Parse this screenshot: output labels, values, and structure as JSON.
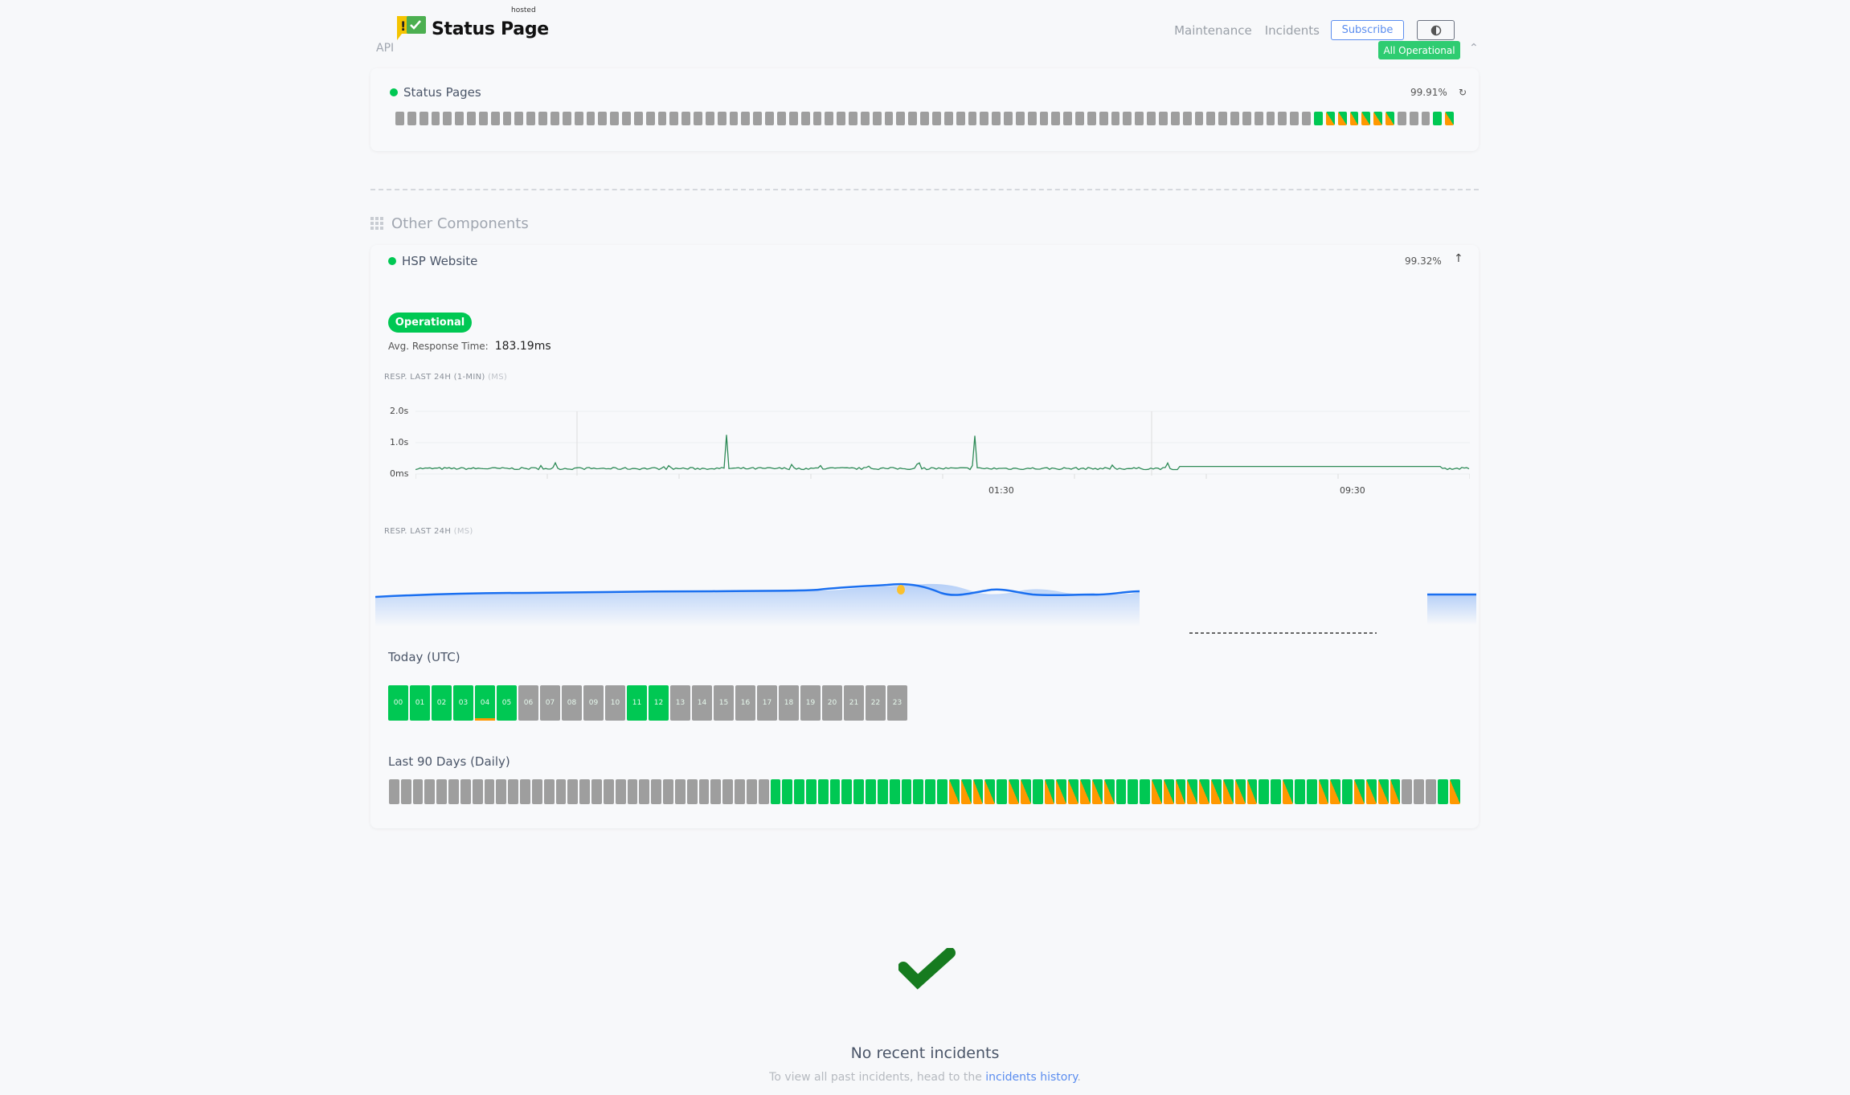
{
  "header": {
    "logo_text": "Status Page",
    "logo_superscript": "hosted",
    "api_label": "API",
    "nav": [
      {
        "label": "Maintenance"
      },
      {
        "label": "Incidents"
      }
    ],
    "subscribe_label": "Subscribe",
    "overall_status": "All Operational",
    "colors": {
      "accent": "#5b8def",
      "operational": "#2ecc71"
    }
  },
  "status_pages": {
    "name": "Status Pages",
    "uptime": "99.91%",
    "bars": "xxxxxxxxxxxxxxxxxxxxxxxxxxxxxxxxxxxxxxxxxxxxxxxxxxxxxxxxxxxxxxxxxxxxxxxxxxxxxgmmmmmmxxxgm"
  },
  "other_components": {
    "title": "Other Components",
    "component": {
      "name": "HSP Website",
      "uptime": "99.32%",
      "status": "Operational",
      "avg_label": "Avg. Response Time:",
      "avg_value": "183.19ms",
      "chart1": {
        "title": "RESP. LAST 24H (1-MIN)",
        "unit": "(MS)",
        "y_ticks": [
          "2.0s",
          "1.0s",
          "0ms"
        ],
        "x_ticks": [
          "01:30",
          "09:30"
        ],
        "line_color": "#2e8b57"
      },
      "chart2": {
        "title": "RESP. LAST 24H",
        "unit": "(MS)",
        "line_color": "#1a6ff0",
        "marker_color": "#fbc02d"
      },
      "today": {
        "title": "Today (UTC)",
        "hours": [
          "00",
          "01",
          "02",
          "03",
          "04",
          "05",
          "06",
          "07",
          "08",
          "09",
          "10",
          "11",
          "12",
          "13",
          "14",
          "15",
          "16",
          "17",
          "18",
          "19",
          "20",
          "21",
          "22",
          "23"
        ],
        "states": "ggggwgxxxxxggxxxxxxxxxxx"
      },
      "last90": {
        "title": "Last 90 Days (Daily)",
        "bars": "xxxxxxxxxxxxxxxxxxxxxxxxxxxxxxxxgggggggggggggggmmmmgmmgmmmmmmgggmmmmmmmmmggmggmmgmmmmxxxgm"
      }
    }
  },
  "incidents": {
    "title": "No recent incidents",
    "sub_prefix": "To view all past incidents, head to the",
    "sub_link": "incidents history",
    "sub_suffix": "."
  }
}
